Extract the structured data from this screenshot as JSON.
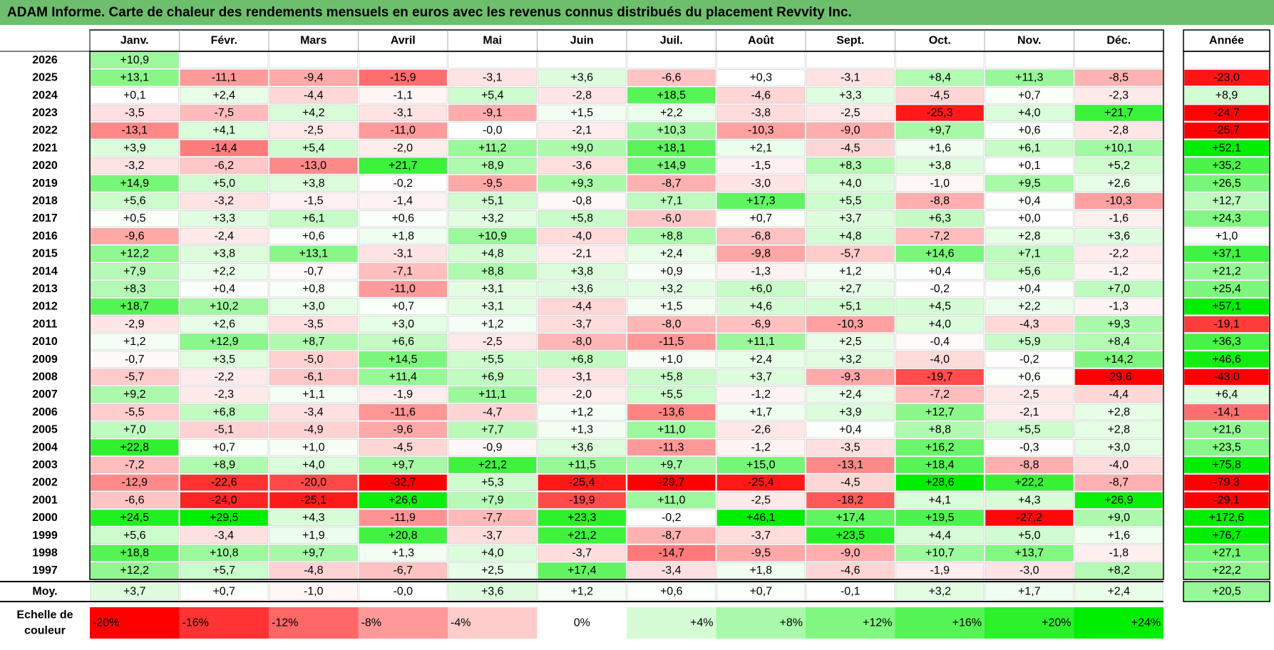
{
  "title": "ADAM Informe. Carte de chaleur des rendements mensuels en euros avec les revenus connus distribués du placement Revvity Inc.",
  "colors": {
    "title_bg": "#6dbf6d",
    "neg_max": "#ff0000",
    "pos_max": "#00ee00",
    "neutral": "#ffffff"
  },
  "chart_data": {
    "type": "heatmap",
    "title": "ADAM Informe. Carte de chaleur des rendements mensuels en euros avec les revenus connus distribués du placement Revvity Inc.",
    "months": [
      "Janv.",
      "Févr.",
      "Mars",
      "Avril",
      "Mai",
      "Juin",
      "Juil.",
      "Août",
      "Sept.",
      "Oct.",
      "Nov.",
      "Déc."
    ],
    "year_header": "Année",
    "avg_label": "Moy.",
    "scale_label_line1": "Echelle de",
    "scale_label_line2": "couleur",
    "rows": [
      {
        "year": "2026",
        "months": [
          "+10,9",
          "",
          "",
          "",
          "",
          "",
          "",
          "",
          "",
          "",
          "",
          ""
        ],
        "annual": ""
      },
      {
        "year": "2025",
        "months": [
          "+13,1",
          "-11,1",
          "-9,4",
          "-15,9",
          "-3,1",
          "+3,6",
          "-6,6",
          "+0,3",
          "-3,1",
          "+8,4",
          "+11,3",
          "-8,5"
        ],
        "annual": "-23,0"
      },
      {
        "year": "2024",
        "months": [
          "+0,1",
          "+2,4",
          "-4,4",
          "-1,1",
          "+5,4",
          "-2,8",
          "+18,5",
          "-4,6",
          "+3,3",
          "-4,5",
          "+0,7",
          "-2,3"
        ],
        "annual": "+8,9"
      },
      {
        "year": "2023",
        "months": [
          "-3,5",
          "-7,5",
          "+4,2",
          "-3,1",
          "-9,1",
          "+1,5",
          "+2,2",
          "-3,8",
          "-2,5",
          "-25,3",
          "+4,0",
          "+21,7"
        ],
        "annual": "-24,7"
      },
      {
        "year": "2022",
        "months": [
          "-13,1",
          "+4,1",
          "-2,5",
          "-11,0",
          "-0,0",
          "-2,1",
          "+10,3",
          "-10,3",
          "-9,0",
          "+9,7",
          "+0,6",
          "-2,8"
        ],
        "annual": "-25,7"
      },
      {
        "year": "2021",
        "months": [
          "+3,9",
          "-14,4",
          "+5,4",
          "-2,0",
          "+11,2",
          "+9,0",
          "+18,1",
          "+2,1",
          "-4,5",
          "+1,6",
          "+6,1",
          "+10,1"
        ],
        "annual": "+52,1"
      },
      {
        "year": "2020",
        "months": [
          "-3,2",
          "-6,2",
          "-13,0",
          "+21,7",
          "+8,9",
          "-3,6",
          "+14,9",
          "-1,5",
          "+8,3",
          "+3,8",
          "+0,1",
          "+5,2"
        ],
        "annual": "+35,2"
      },
      {
        "year": "2019",
        "months": [
          "+14,9",
          "+5,0",
          "+3,8",
          "-0,2",
          "-9,5",
          "+9,3",
          "-8,7",
          "-3,0",
          "+4,0",
          "-1,0",
          "+9,5",
          "+2,6"
        ],
        "annual": "+26,5"
      },
      {
        "year": "2018",
        "months": [
          "+5,6",
          "-3,2",
          "-1,5",
          "-1,4",
          "+5,1",
          "-0,8",
          "+7,1",
          "+17,3",
          "+5,5",
          "-8,8",
          "+0,4",
          "-10,3"
        ],
        "annual": "+12,7"
      },
      {
        "year": "2017",
        "months": [
          "+0,5",
          "+3,3",
          "+6,1",
          "+0,6",
          "+3,2",
          "+5,8",
          "-6,0",
          "+0,7",
          "+3,7",
          "+6,3",
          "+0,0",
          "-1,6"
        ],
        "annual": "+24,3"
      },
      {
        "year": "2016",
        "months": [
          "-9,6",
          "-2,4",
          "+0,6",
          "+1,8",
          "+10,9",
          "-4,0",
          "+8,8",
          "-6,8",
          "+4,8",
          "-7,2",
          "+2,8",
          "+3,6"
        ],
        "annual": "+1,0"
      },
      {
        "year": "2015",
        "months": [
          "+12,2",
          "+3,8",
          "+13,1",
          "-3,1",
          "+4,8",
          "-2,1",
          "+2,4",
          "-9,8",
          "-5,7",
          "+14,6",
          "+7,1",
          "-2,2"
        ],
        "annual": "+37,1"
      },
      {
        "year": "2014",
        "months": [
          "+7,9",
          "+2,2",
          "-0,7",
          "-7,1",
          "+8,8",
          "+3,8",
          "+0,9",
          "-1,3",
          "+1,2",
          "+0,4",
          "+5,6",
          "-1,2"
        ],
        "annual": "+21,2"
      },
      {
        "year": "2013",
        "months": [
          "+8,3",
          "+0,4",
          "+0,8",
          "-11,0",
          "+3,1",
          "+3,6",
          "+3,2",
          "+6,0",
          "+2,7",
          "-0,2",
          "+0,4",
          "+7,0"
        ],
        "annual": "+25,4"
      },
      {
        "year": "2012",
        "months": [
          "+18,7",
          "+10,2",
          "+3,0",
          "+0,7",
          "+3,1",
          "-4,4",
          "+1,5",
          "+4,6",
          "+5,1",
          "+4,5",
          "+2,2",
          "-1,3"
        ],
        "annual": "+57,1"
      },
      {
        "year": "2011",
        "months": [
          "-2,9",
          "+2,6",
          "-3,5",
          "+3,0",
          "+1,2",
          "-3,7",
          "-8,0",
          "-6,9",
          "-10,3",
          "+4,0",
          "-4,3",
          "+9,3"
        ],
        "annual": "-19,1"
      },
      {
        "year": "2010",
        "months": [
          "+1,2",
          "+12,9",
          "+8,7",
          "+6,6",
          "-2,5",
          "-8,0",
          "-11,5",
          "+11,1",
          "+2,5",
          "-0,4",
          "+5,9",
          "+8,4"
        ],
        "annual": "+36,3"
      },
      {
        "year": "2009",
        "months": [
          "-0,7",
          "+3,5",
          "-5,0",
          "+14,5",
          "+5,5",
          "+6,8",
          "+1,0",
          "+2,4",
          "+3,2",
          "-4,0",
          "-0,2",
          "+14,2"
        ],
        "annual": "+46,6"
      },
      {
        "year": "2008",
        "months": [
          "-5,7",
          "-2,2",
          "-6,1",
          "+11,4",
          "+6,9",
          "-3,1",
          "+5,8",
          "+3,7",
          "-9,3",
          "-19,7",
          "+0,6",
          "-29,6"
        ],
        "annual": "-43,0"
      },
      {
        "year": "2007",
        "months": [
          "+9,2",
          "-2,3",
          "+1,1",
          "-1,9",
          "+11,1",
          "-2,0",
          "+5,5",
          "-1,2",
          "+2,4",
          "-7,2",
          "-2,5",
          "-4,4"
        ],
        "annual": "+6,4"
      },
      {
        "year": "2006",
        "months": [
          "-5,5",
          "+6,8",
          "-3,4",
          "-11,6",
          "-4,7",
          "+1,2",
          "-13,6",
          "+1,7",
          "+3,9",
          "+12,7",
          "-2,1",
          "+2,8"
        ],
        "annual": "-14,1"
      },
      {
        "year": "2005",
        "months": [
          "+7,0",
          "-5,1",
          "-4,9",
          "-9,6",
          "+7,7",
          "+1,3",
          "+11,0",
          "-2,6",
          "+0,4",
          "+8,8",
          "+5,5",
          "+2,8"
        ],
        "annual": "+21,6"
      },
      {
        "year": "2004",
        "months": [
          "+22,8",
          "+0,7",
          "+1,0",
          "-4,5",
          "-0,9",
          "+3,6",
          "-11,3",
          "-1,2",
          "-3,5",
          "+16,2",
          "-0,3",
          "+3,0"
        ],
        "annual": "+23,5"
      },
      {
        "year": "2003",
        "months": [
          "-7,2",
          "+8,9",
          "+4,0",
          "+9,7",
          "+21,2",
          "+11,5",
          "+9,7",
          "+15,0",
          "-13,1",
          "+18,4",
          "-8,8",
          "-4,0"
        ],
        "annual": "+75,8"
      },
      {
        "year": "2002",
        "months": [
          "-12,9",
          "-22,6",
          "-20,0",
          "-32,7",
          "+5,3",
          "-25,4",
          "-29,7",
          "-25,4",
          "-4,5",
          "+28,6",
          "+22,2",
          "-8,7"
        ],
        "annual": "-79,3"
      },
      {
        "year": "2001",
        "months": [
          "-6,6",
          "-24,0",
          "-25,1",
          "+26,6",
          "+7,9",
          "-19,9",
          "+11,0",
          "-2,5",
          "-18,2",
          "+4,1",
          "+4,3",
          "+26,9"
        ],
        "annual": "-29,1"
      },
      {
        "year": "2000",
        "months": [
          "+24,5",
          "+29,5",
          "+4,3",
          "-11,9",
          "-7,7",
          "+23,3",
          "-0,2",
          "+46,1",
          "+17,4",
          "+19,5",
          "-27,2",
          "+9,0"
        ],
        "annual": "+172,6"
      },
      {
        "year": "1999",
        "months": [
          "+5,6",
          "-3,4",
          "+1,9",
          "+20,8",
          "-3,7",
          "+21,2",
          "-8,7",
          "-3,7",
          "+23,5",
          "+4,4",
          "+5,0",
          "+1,6"
        ],
        "annual": "+76,7"
      },
      {
        "year": "1998",
        "months": [
          "+18,8",
          "+10,8",
          "+9,7",
          "+1,3",
          "+4,0",
          "-3,7",
          "-14,7",
          "-9,5",
          "-9,0",
          "+10,7",
          "+13,7",
          "-1,8"
        ],
        "annual": "+27,1"
      },
      {
        "year": "1997",
        "months": [
          "+12,2",
          "+5,7",
          "-4,8",
          "-6,7",
          "+2,5",
          "+17,4",
          "-3,4",
          "+1,8",
          "-4,6",
          "-1,9",
          "-3,0",
          "+8,2"
        ],
        "annual": "+22,2"
      }
    ],
    "averages": {
      "months": [
        "+3,7",
        "+0,7",
        "-1,0",
        "-0,0",
        "+3,6",
        "+1,2",
        "+0,6",
        "+0,7",
        "-0,1",
        "+3,2",
        "+1,7",
        "+2,4"
      ],
      "annual": "+20,5"
    },
    "scale": [
      "-20%",
      "-16%",
      "-12%",
      "-8%",
      "-4%",
      "0%",
      "+4%",
      "+8%",
      "+12%",
      "+16%",
      "+20%",
      "+24%"
    ]
  }
}
